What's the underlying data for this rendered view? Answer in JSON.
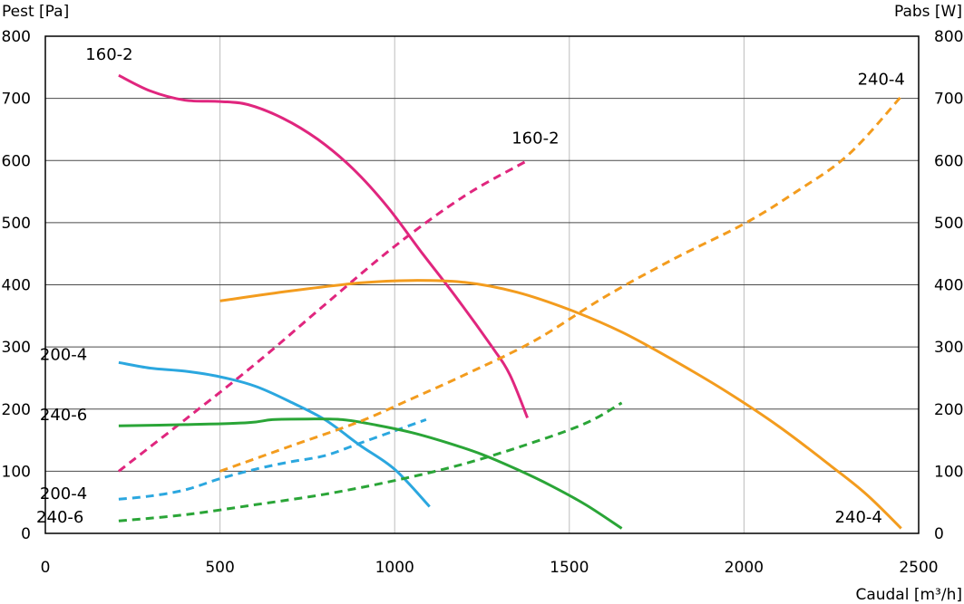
{
  "chart_data": {
    "type": "line",
    "xlabel": "Caudal [m³/h]",
    "ylabel_left": "Pest [Pa]",
    "ylabel_right": "Pabs [W]",
    "xlim": [
      0,
      2500
    ],
    "ylim": [
      0,
      800
    ],
    "x_ticks": [
      0,
      500,
      1000,
      1500,
      2000,
      2500
    ],
    "y_ticks": [
      0,
      100,
      200,
      300,
      400,
      500,
      600,
      700,
      800
    ],
    "grid": true,
    "colors": {
      "magenta": "#e0267e",
      "blue": "#2ba7df",
      "green": "#2aa537",
      "orange": "#f39c1e"
    },
    "series": [
      {
        "name": "160-2",
        "axis": "left",
        "style": "solid",
        "color": "#e0267e",
        "points": [
          [
            210,
            737
          ],
          [
            300,
            712
          ],
          [
            400,
            697
          ],
          [
            500,
            695
          ],
          [
            580,
            690
          ],
          [
            680,
            668
          ],
          [
            780,
            634
          ],
          [
            880,
            587
          ],
          [
            980,
            525
          ],
          [
            1080,
            450
          ],
          [
            1180,
            377
          ],
          [
            1280,
            299
          ],
          [
            1330,
            255
          ],
          [
            1380,
            186
          ]
        ]
      },
      {
        "name": "160-2",
        "axis": "right",
        "style": "dashed",
        "color": "#e0267e",
        "points": [
          [
            210,
            100
          ],
          [
            400,
            183
          ],
          [
            600,
            272
          ],
          [
            800,
            368
          ],
          [
            1000,
            462
          ],
          [
            1200,
            543
          ],
          [
            1380,
            600
          ]
        ]
      },
      {
        "name": "200-4",
        "axis": "left",
        "style": "solid",
        "color": "#2ba7df",
        "points": [
          [
            210,
            275
          ],
          [
            300,
            266
          ],
          [
            400,
            261
          ],
          [
            500,
            252
          ],
          [
            600,
            237
          ],
          [
            700,
            212
          ],
          [
            800,
            183
          ],
          [
            900,
            142
          ],
          [
            1000,
            103
          ],
          [
            1100,
            43
          ]
        ]
      },
      {
        "name": "200-4",
        "axis": "right",
        "style": "dashed",
        "color": "#2ba7df",
        "points": [
          [
            210,
            55
          ],
          [
            300,
            60
          ],
          [
            400,
            70
          ],
          [
            500,
            88
          ],
          [
            600,
            103
          ],
          [
            700,
            115
          ],
          [
            800,
            125
          ],
          [
            900,
            145
          ],
          [
            1000,
            165
          ],
          [
            1090,
            183
          ]
        ]
      },
      {
        "name": "240-6",
        "axis": "left",
        "style": "solid",
        "color": "#2aa537",
        "points": [
          [
            210,
            173
          ],
          [
            400,
            175
          ],
          [
            580,
            178
          ],
          [
            650,
            183
          ],
          [
            750,
            184
          ],
          [
            850,
            183
          ],
          [
            950,
            174
          ],
          [
            1050,
            162
          ],
          [
            1150,
            146
          ],
          [
            1250,
            127
          ],
          [
            1350,
            103
          ],
          [
            1450,
            76
          ],
          [
            1550,
            45
          ],
          [
            1650,
            8
          ]
        ]
      },
      {
        "name": "240-6",
        "axis": "right",
        "style": "dashed",
        "color": "#2aa537",
        "points": [
          [
            210,
            20
          ],
          [
            400,
            30
          ],
          [
            600,
            46
          ],
          [
            800,
            63
          ],
          [
            1000,
            85
          ],
          [
            1200,
            112
          ],
          [
            1400,
            147
          ],
          [
            1550,
            178
          ],
          [
            1650,
            210
          ]
        ]
      },
      {
        "name": "240-4",
        "axis": "left",
        "style": "solid",
        "color": "#f39c1e",
        "points": [
          [
            500,
            374
          ],
          [
            700,
            390
          ],
          [
            900,
            403
          ],
          [
            1050,
            407
          ],
          [
            1200,
            404
          ],
          [
            1350,
            388
          ],
          [
            1500,
            360
          ],
          [
            1650,
            324
          ],
          [
            1800,
            278
          ],
          [
            1950,
            228
          ],
          [
            2100,
            172
          ],
          [
            2250,
            108
          ],
          [
            2350,
            63
          ],
          [
            2450,
            8
          ]
        ]
      },
      {
        "name": "240-4",
        "axis": "right",
        "style": "dashed",
        "color": "#f39c1e",
        "points": [
          [
            500,
            100
          ],
          [
            700,
            140
          ],
          [
            900,
            180
          ],
          [
            1050,
            217
          ],
          [
            1200,
            255
          ],
          [
            1400,
            310
          ],
          [
            1600,
            380
          ],
          [
            1800,
            442
          ],
          [
            2000,
            498
          ],
          [
            2150,
            550
          ],
          [
            2300,
            610
          ],
          [
            2450,
            703
          ]
        ]
      }
    ],
    "annotations": [
      {
        "text": "160-2",
        "x": 115,
        "y": 771,
        "side": "top-left"
      },
      {
        "text": "160-2",
        "x": 1335,
        "y": 636,
        "side": "mid"
      },
      {
        "text": "240-4",
        "x": 2325,
        "y": 731,
        "side": "top-right"
      },
      {
        "text": "200-4",
        "x": 120,
        "y": 288,
        "side": "left"
      },
      {
        "text": "240-6",
        "x": 120,
        "y": 191,
        "side": "left"
      },
      {
        "text": "200-4",
        "x": 120,
        "y": 64,
        "side": "left"
      },
      {
        "text": "240-6",
        "x": 110,
        "y": 26,
        "side": "left"
      },
      {
        "text": "240-4",
        "x": 2260,
        "y": 26,
        "side": "bottom-right"
      }
    ]
  }
}
